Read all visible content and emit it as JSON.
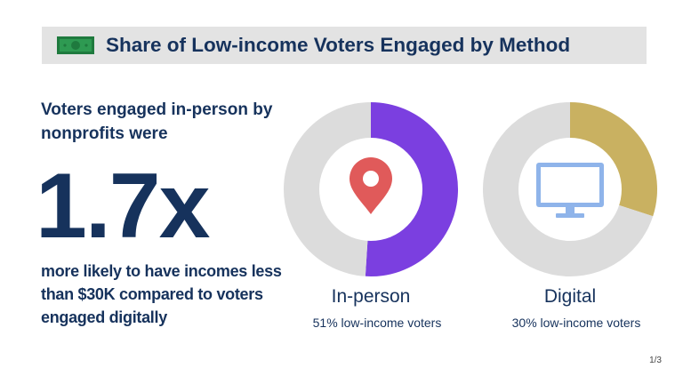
{
  "header": {
    "title": "Share of Low-income Voters Engaged by Method",
    "icon": "money-bill-icon"
  },
  "stat": {
    "intro": "Voters engaged in-person by nonprofits were",
    "value": "1.7x",
    "outro": "more likely to have incomes less than $30K compared to voters engaged digitally"
  },
  "chart_data": [
    {
      "type": "pie",
      "title": "In-person",
      "subtitle": "51% low-income voters",
      "values": [
        51,
        49
      ],
      "colors": [
        "#7b3fe0",
        "#dcdcdc"
      ],
      "icon": "map-pin-icon"
    },
    {
      "type": "pie",
      "title": "Digital",
      "subtitle": "30% low-income voters",
      "values": [
        30,
        70
      ],
      "colors": [
        "#c9b161",
        "#dcdcdc"
      ],
      "icon": "computer-monitor-icon"
    }
  ],
  "footer": {
    "page": "1/3"
  },
  "colors": {
    "navy": "#16325c",
    "pin": "#e05a5a",
    "monitor": "#8fb4ea"
  }
}
